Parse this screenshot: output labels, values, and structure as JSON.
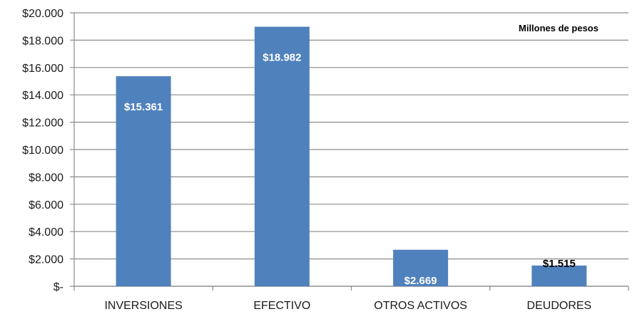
{
  "chart_data": {
    "type": "bar",
    "title": "",
    "annotation": "Millones de pesos",
    "categories": [
      "INVERSIONES",
      "EFECTIVO",
      "OTROS ACTIVOS",
      "DEUDORES"
    ],
    "values": [
      15361,
      18982,
      2669,
      1515
    ],
    "data_labels": [
      "$15.361",
      "$18.982",
      "$2.669",
      "$1.515"
    ],
    "y_ticks": [
      0,
      2000,
      4000,
      6000,
      8000,
      10000,
      12000,
      14000,
      16000,
      18000,
      20000
    ],
    "y_tick_labels": [
      "$-",
      "$2.000",
      "$4.000",
      "$6.000",
      "$8.000",
      "$10.000",
      "$12.000",
      "$14.000",
      "$16.000",
      "$18.000",
      "$20.000"
    ],
    "ylim": [
      0,
      20000
    ],
    "grid": true,
    "colors": {
      "bar": "#4f81bd",
      "grid": "#8c8c8c",
      "label_light": "#ffffff",
      "label_dark": "#000000"
    }
  }
}
